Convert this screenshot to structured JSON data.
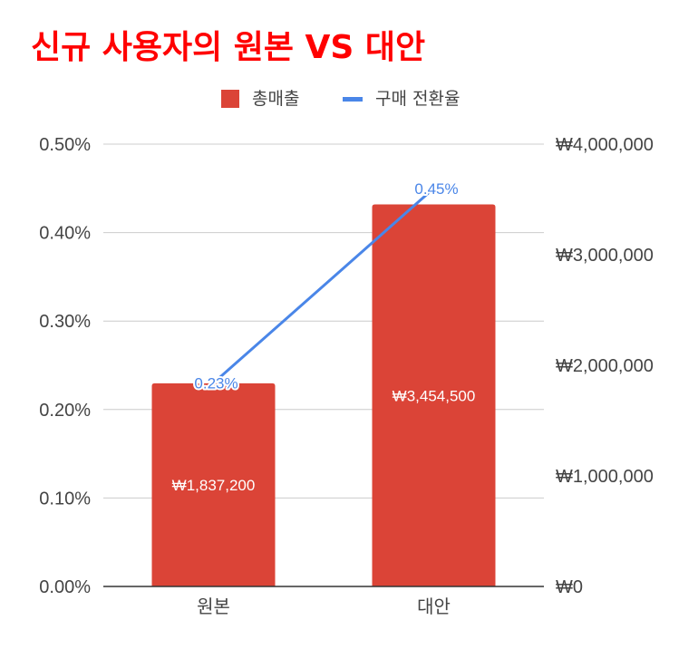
{
  "chart_data": {
    "type": "bar",
    "title": "신규 사용자의 원본 VS 대안",
    "categories": [
      "원본",
      "대안"
    ],
    "legend": {
      "position": "top"
    },
    "grid": true,
    "series": [
      {
        "name": "총매출",
        "type": "bar",
        "axis": "right",
        "color": "#db4437",
        "values": [
          1837200,
          3454500
        ],
        "labels": [
          "₩1,837,200",
          "₩3,454,500"
        ]
      },
      {
        "name": "구매 전환율",
        "type": "line",
        "axis": "left",
        "color": "#4a86e8",
        "values": [
          0.23,
          0.45
        ],
        "labels": [
          "0.23%",
          "0.45%"
        ]
      }
    ],
    "y_left": {
      "ylim": [
        0,
        0.5
      ],
      "ticks": [
        0,
        0.1,
        0.2,
        0.3,
        0.4,
        0.5
      ],
      "tick_labels": [
        "0.00%",
        "0.10%",
        "0.20%",
        "0.30%",
        "0.40%",
        "0.50%"
      ]
    },
    "y_right": {
      "ylim": [
        0,
        4000000
      ],
      "ticks": [
        0,
        1000000,
        2000000,
        3000000,
        4000000
      ],
      "tick_labels": [
        "₩0",
        "₩1,000,000",
        "₩2,000,000",
        "₩3,000,000",
        "₩4,000,000"
      ]
    },
    "title_color": "#ff0000"
  }
}
